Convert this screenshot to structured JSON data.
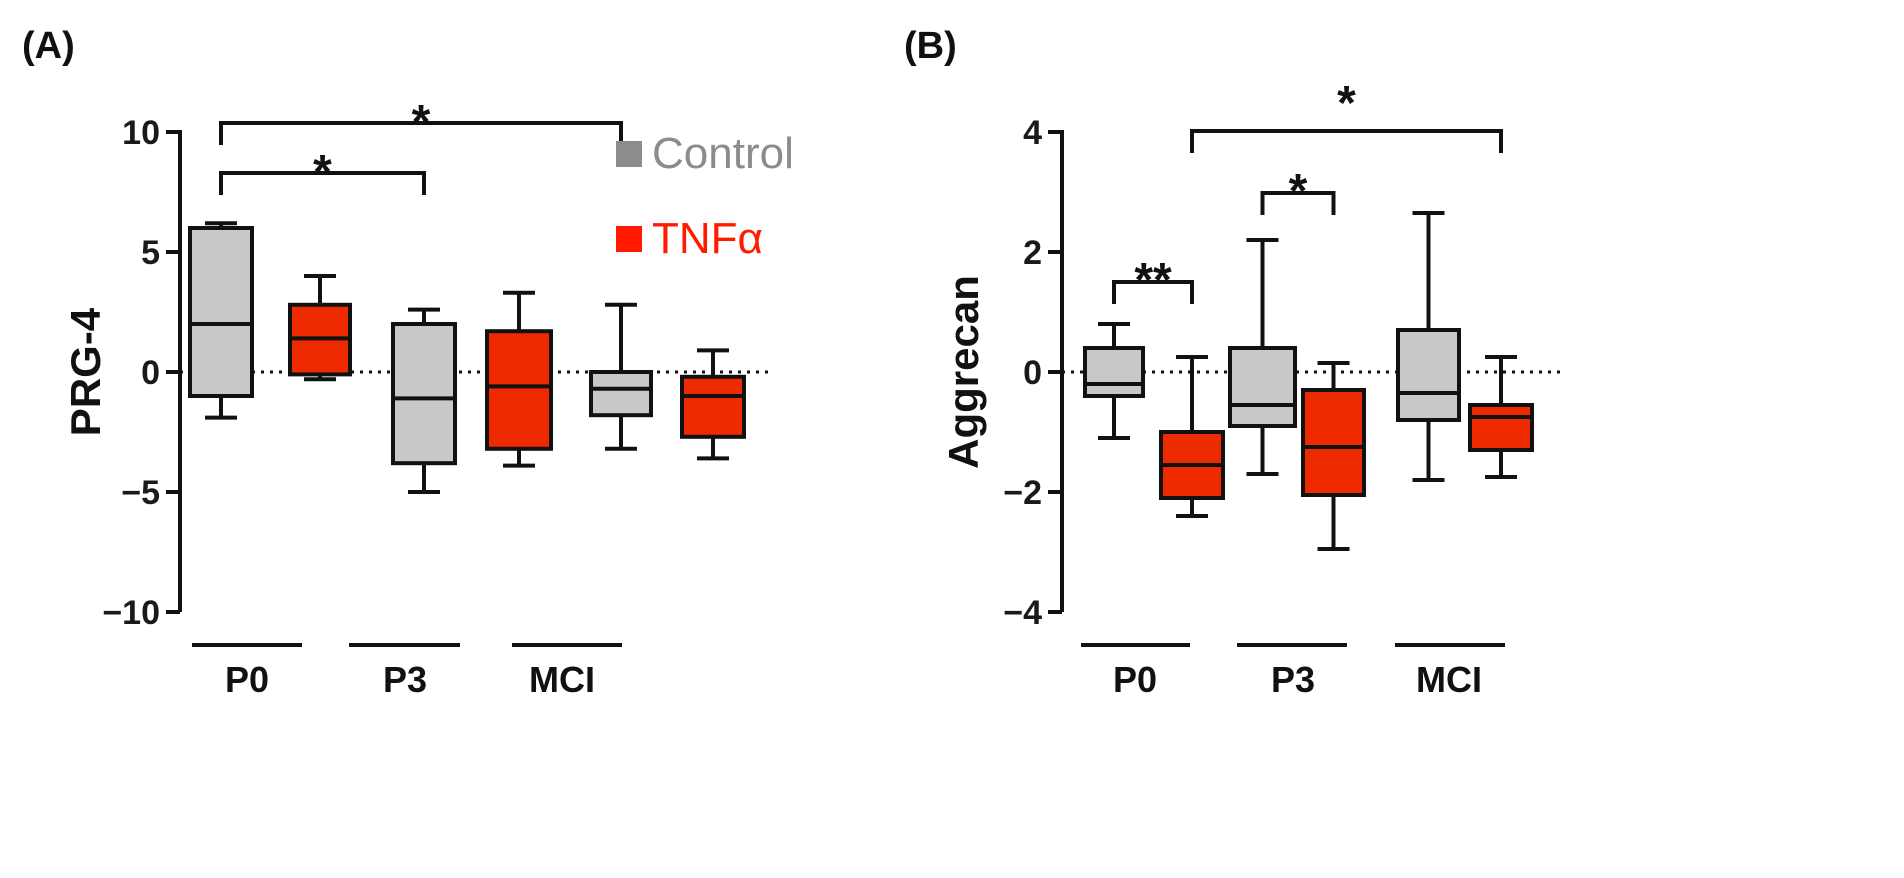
{
  "chart_data": [
    {
      "panel_label": "(A)",
      "type": "boxplot",
      "ylabel": "PRG-4",
      "ylim": [
        -10,
        10
      ],
      "yticks": [
        {
          "value": 10,
          "label": "10"
        },
        {
          "value": 5,
          "label": "5"
        },
        {
          "value": 0,
          "label": "0"
        },
        {
          "value": -5,
          "label": "−5"
        },
        {
          "value": -10,
          "label": "−10"
        }
      ],
      "reference_line": 0,
      "groups": [
        "P0",
        "P3",
        "MCI"
      ],
      "series": [
        {
          "name": "Control",
          "boxes": [
            {
              "group": "P0",
              "min": -1.9,
              "q1": -1.0,
              "median": 2.0,
              "q3": 6.0,
              "max": 6.2
            },
            {
              "group": "P3",
              "min": -5.0,
              "q1": -3.8,
              "median": -1.1,
              "q3": 2.0,
              "max": 2.6
            },
            {
              "group": "MCI",
              "min": -3.2,
              "q1": -1.8,
              "median": -0.7,
              "q3": 0.0,
              "max": 2.8
            }
          ]
        },
        {
          "name": "TNFα",
          "boxes": [
            {
              "group": "P0",
              "min": -0.3,
              "q1": -0.1,
              "median": 1.4,
              "q3": 2.8,
              "max": 4.0
            },
            {
              "group": "P3",
              "min": -3.9,
              "q1": -3.2,
              "median": -0.6,
              "q3": 1.7,
              "max": 3.3
            },
            {
              "group": "MCI",
              "min": -3.6,
              "q1": -2.7,
              "median": -1.0,
              "q3": -0.2,
              "max": 0.9
            }
          ]
        }
      ],
      "significance": [
        {
          "from": "P0 Control",
          "to": "P3 Control",
          "label": "*"
        },
        {
          "from": "P0 Control",
          "to": "MCI Control",
          "label": "*"
        }
      ]
    },
    {
      "panel_label": "(B)",
      "type": "boxplot",
      "ylabel": "Aggrecan",
      "ylim": [
        -4,
        4
      ],
      "yticks": [
        {
          "value": 4,
          "label": "4"
        },
        {
          "value": 2,
          "label": "2"
        },
        {
          "value": 0,
          "label": "0"
        },
        {
          "value": -2,
          "label": "−2"
        },
        {
          "value": -4,
          "label": "−4"
        }
      ],
      "reference_line": 0,
      "groups": [
        "P0",
        "P3",
        "MCI"
      ],
      "series": [
        {
          "name": "Control",
          "boxes": [
            {
              "group": "P0",
              "min": -1.1,
              "q1": -0.4,
              "median": -0.2,
              "q3": 0.4,
              "max": 0.8
            },
            {
              "group": "P3",
              "min": -1.7,
              "q1": -0.9,
              "median": -0.55,
              "q3": 0.4,
              "max": 2.2
            },
            {
              "group": "MCI",
              "min": -1.8,
              "q1": -0.8,
              "median": -0.35,
              "q3": 0.7,
              "max": 2.65
            }
          ]
        },
        {
          "name": "TNFα",
          "boxes": [
            {
              "group": "P0",
              "min": -2.4,
              "q1": -2.1,
              "median": -1.55,
              "q3": -1.0,
              "max": 0.25
            },
            {
              "group": "P3",
              "min": -2.95,
              "q1": -2.05,
              "median": -1.25,
              "q3": -0.3,
              "max": 0.15
            },
            {
              "group": "MCI",
              "min": -1.75,
              "q1": -1.3,
              "median": -0.75,
              "q3": -0.55,
              "max": 0.25
            }
          ]
        }
      ],
      "significance": [
        {
          "from": "P0 Control",
          "to": "P0 TNFα",
          "label": "**"
        },
        {
          "from": "P3 Control",
          "to": "P3 TNFα",
          "label": "*"
        },
        {
          "from": "P0 TNFα",
          "to": "MCI TNFα",
          "label": "*"
        }
      ]
    }
  ],
  "legend": [
    {
      "name": "Control",
      "color": "#8c8c8c"
    },
    {
      "name": "TNFα",
      "color": "#ff1a00"
    }
  ],
  "colors": {
    "control_fill": "#c8c8c8",
    "tnf_fill": "#ee2a00",
    "stroke": "#111111"
  }
}
